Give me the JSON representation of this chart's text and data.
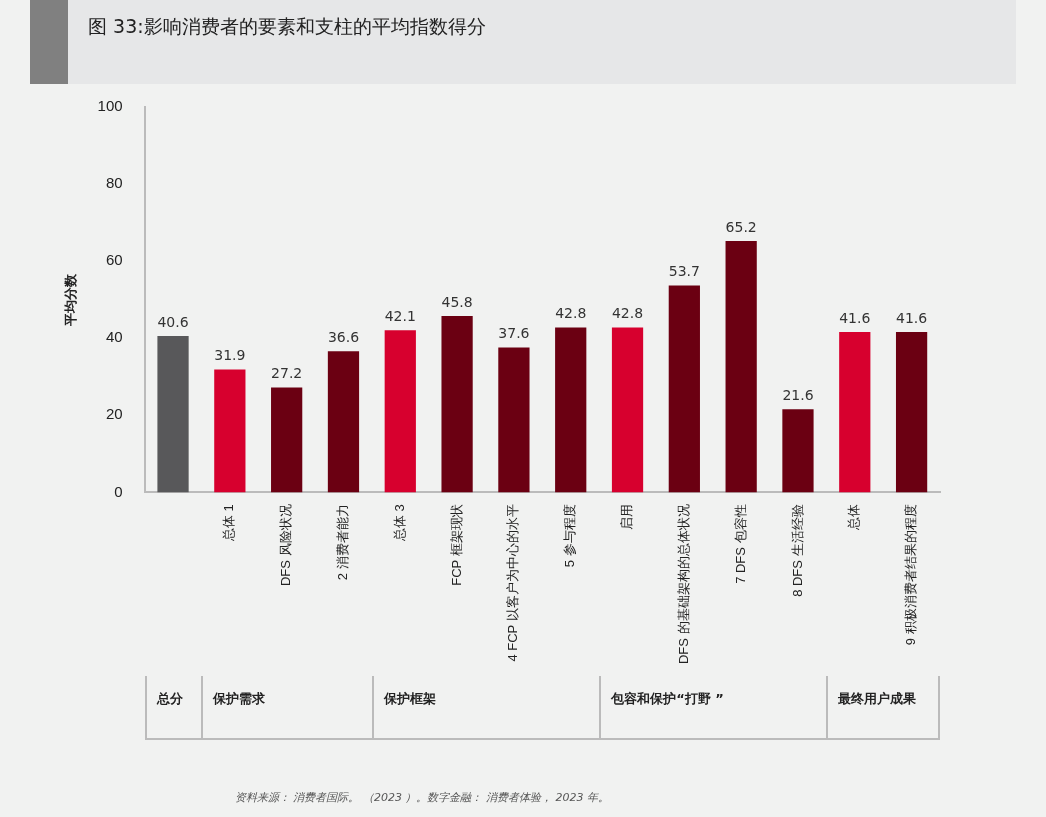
{
  "chart_data": {
    "type": "bar",
    "title": "图 33:影响消费者的要素和支柱的平均指数得分",
    "ylabel": "平均分数",
    "categories": [
      null,
      "总体 1",
      "DFS 风险状况",
      "2 消费者能力",
      "总体 3",
      "FCP 框架现状",
      "4 FCP 以客户为中心的水平",
      "5 参与程度",
      "启用",
      "DFS 的基础架构的总体状况",
      "7 DFS 包容性",
      "8 DFS 生活经验",
      "总体",
      "9 积极消费者结果的程度"
    ],
    "values": [
      40.6,
      31.9,
      27.2,
      36.6,
      42.1,
      45.8,
      37.6,
      42.8,
      42.8,
      53.7,
      65.2,
      21.6,
      41.6,
      41.6
    ],
    "colors": [
      "#58585a",
      "#d7002e",
      "#6b0012",
      "#6b0012",
      "#d7002e",
      "#6b0012",
      "#6b0012",
      "#6b0012",
      "#d7002e",
      "#6b0012",
      "#6b0012",
      "#6b0012",
      "#d7002e",
      "#6b0012"
    ],
    "ylim": [
      0,
      100
    ],
    "yticks": [
      0,
      20,
      40,
      60,
      80,
      100
    ],
    "data_labels": true,
    "annotations": [
      "总分",
      "保护需求",
      "保护框架",
      "包容和保护“打野 ”",
      "最终用户成果",
      "资料来源： 消费者国际。 （2023 ）。数字金融： 消费者体验， 2023 年。"
    ]
  }
}
